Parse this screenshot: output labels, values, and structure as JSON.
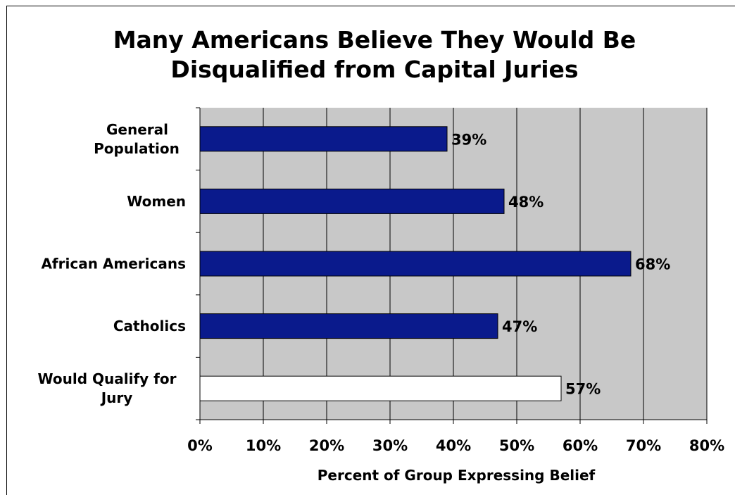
{
  "chart_data": {
    "type": "bar",
    "orientation": "horizontal",
    "title": "Many Americans Believe They Would Be Disqualified from Capital Juries",
    "title_lines": [
      "Many Americans Believe They Would Be",
      "Disqualified from Capital Juries"
    ],
    "xlabel": "Percent of Group Expressing Belief",
    "ylabel": "",
    "xlim": [
      0,
      80
    ],
    "grid": true,
    "categories": [
      [
        "General",
        "Population"
      ],
      [
        "Women"
      ],
      [
        "African Americans"
      ],
      [
        "Catholics"
      ],
      [
        "Would Qualify for",
        "Jury"
      ]
    ],
    "values": [
      39,
      48,
      68,
      47,
      57
    ],
    "value_labels": [
      "39%",
      "48%",
      "68%",
      "47%",
      "57%"
    ],
    "bar_colors": [
      "#0a1a8c",
      "#0a1a8c",
      "#0a1a8c",
      "#0a1a8c",
      "#ffffff"
    ],
    "tick_labels": [
      "0%",
      "10%",
      "20%",
      "30%",
      "40%",
      "50%",
      "60%",
      "70%",
      "80%"
    ],
    "plot_background": "#c8c8c8"
  }
}
